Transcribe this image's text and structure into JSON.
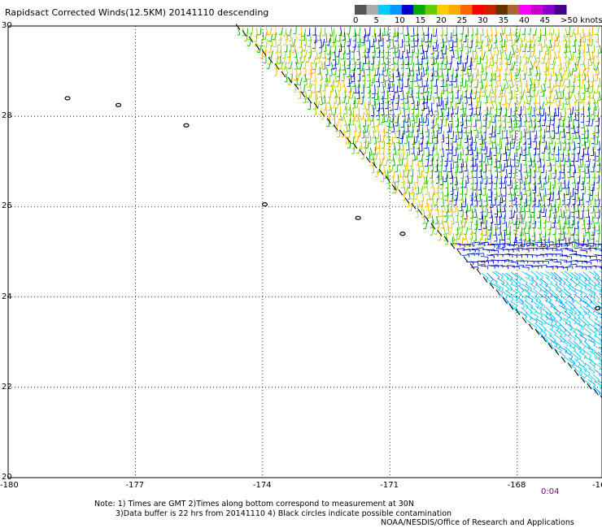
{
  "title": "Rapidsact Corrected Winds(12.5KM) 20141110 descending",
  "colorbar": {
    "labels": [
      "0",
      "5",
      "10",
      "15",
      "20",
      "25",
      "30",
      "35",
      "40",
      "45",
      ">50 knots"
    ],
    "colors": [
      "#555555",
      "#aaaaaa",
      "#00ccff",
      "#0099ff",
      "#0000cc",
      "#00aa00",
      "#66cc00",
      "#ffcc00",
      "#ffaa00",
      "#ff6600",
      "#ff0000",
      "#cc2200",
      "#663300",
      "#aa6633",
      "#ff00ff",
      "#cc00cc",
      "#8800cc",
      "#440088"
    ]
  },
  "map": {
    "lon_range": [
      -180,
      -166
    ],
    "lat_range": [
      20,
      30
    ],
    "x_ticks": [
      "-180",
      "-177",
      "-174",
      "-171",
      "-168",
      "-16"
    ],
    "y_ticks": [
      "30",
      "28",
      "26",
      "24",
      "22",
      "20"
    ],
    "grid": "dotted",
    "islands": [
      {
        "name": "islet-1",
        "lon": -178.6,
        "lat": 28.4
      },
      {
        "name": "islet-2",
        "lon": -177.4,
        "lat": 28.25
      },
      {
        "name": "islet-3",
        "lon": -175.8,
        "lat": 27.8
      },
      {
        "name": "islet-4",
        "lon": -173.95,
        "lat": 26.05
      },
      {
        "name": "islet-5",
        "lon": -171.75,
        "lat": 25.75
      },
      {
        "name": "islet-6",
        "lon": -170.7,
        "lat": 25.4
      },
      {
        "name": "islet-7",
        "lon": -166.1,
        "lat": 23.75
      }
    ]
  },
  "time_label": "0:04",
  "notes": {
    "line1": "Note: 1) Times are GMT 2)Times along bottom correspond to measurement at 30N",
    "line2": "3)Data buffer is 22 hrs from 20141110 4) Black circles indicate possible contamination",
    "line3": "NOAA/NESDIS/Office of Research and Applications"
  }
}
